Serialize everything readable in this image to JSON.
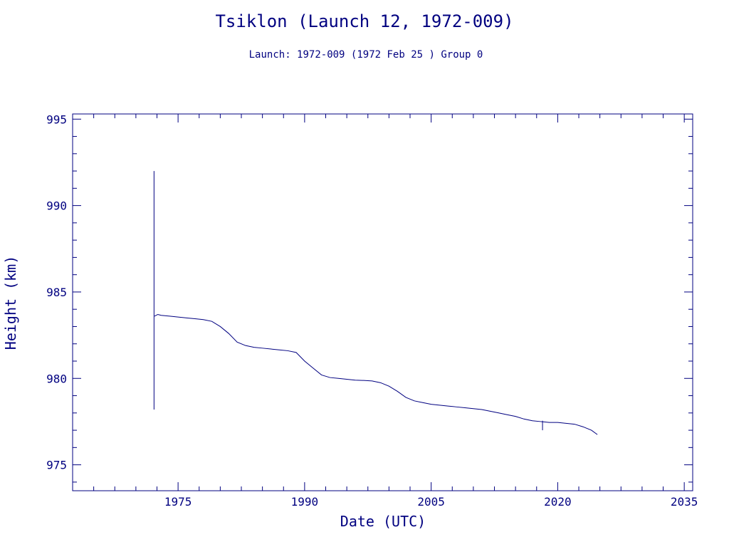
{
  "chart_data": {
    "type": "line",
    "title": "Tsiklon (Launch 12, 1972-009)",
    "subtitle": "Launch: 1972-009  (1972 Feb 25 )  Group 0",
    "xlabel": "Date (UTC)",
    "ylabel": "Height (km)",
    "xlim": [
      1962.5,
      2036
    ],
    "ylim": [
      973.5,
      995.3
    ],
    "xticks": [
      1975,
      1990,
      2005,
      2020,
      2035
    ],
    "yticks": [
      975,
      980,
      985,
      990,
      995
    ],
    "grid": false,
    "color": "#000080",
    "series": [
      {
        "values": [
          [
            1972.2,
            983.6
          ],
          [
            1972.6,
            983.7
          ],
          [
            1973.0,
            983.65
          ],
          [
            1974.0,
            983.6
          ],
          [
            1975.0,
            983.55
          ],
          [
            1976.0,
            983.5
          ],
          [
            1977.0,
            983.45
          ],
          [
            1978.0,
            983.4
          ],
          [
            1979.0,
            983.3
          ],
          [
            1980.0,
            983.0
          ],
          [
            1981.0,
            982.6
          ],
          [
            1982.0,
            982.1
          ],
          [
            1983.0,
            981.9
          ],
          [
            1984.0,
            981.8
          ],
          [
            1985.0,
            981.75
          ],
          [
            1986.0,
            981.7
          ],
          [
            1987.0,
            981.65
          ],
          [
            1988.0,
            981.6
          ],
          [
            1989.0,
            981.5
          ],
          [
            1990.0,
            981.0
          ],
          [
            1991.0,
            980.6
          ],
          [
            1992.0,
            980.2
          ],
          [
            1993.0,
            980.05
          ],
          [
            1994.0,
            980.0
          ],
          [
            1995.0,
            979.95
          ],
          [
            1996.0,
            979.9
          ],
          [
            1997.0,
            979.88
          ],
          [
            1998.0,
            979.85
          ],
          [
            1999.0,
            979.75
          ],
          [
            2000.0,
            979.55
          ],
          [
            2001.0,
            979.25
          ],
          [
            2002.0,
            978.9
          ],
          [
            2003.0,
            978.7
          ],
          [
            2004.0,
            978.6
          ],
          [
            2005.0,
            978.5
          ],
          [
            2006.0,
            978.45
          ],
          [
            2007.0,
            978.4
          ],
          [
            2008.0,
            978.35
          ],
          [
            2009.0,
            978.3
          ],
          [
            2010.0,
            978.25
          ],
          [
            2011.0,
            978.2
          ],
          [
            2012.0,
            978.1
          ],
          [
            2013.0,
            978.0
          ],
          [
            2014.0,
            977.9
          ],
          [
            2015.0,
            977.8
          ],
          [
            2016.0,
            977.65
          ],
          [
            2017.0,
            977.55
          ],
          [
            2018.0,
            977.5
          ],
          [
            2019.0,
            977.45
          ],
          [
            2020.0,
            977.45
          ],
          [
            2021.0,
            977.4
          ],
          [
            2022.0,
            977.35
          ],
          [
            2023.0,
            977.2
          ],
          [
            2024.0,
            977.0
          ],
          [
            2024.7,
            976.75
          ]
        ]
      }
    ],
    "spikes": [
      {
        "x": 1972.15,
        "y_low": 978.2,
        "y_high": 992.0
      },
      {
        "x": 2018.2,
        "y_low": 977.0,
        "y_high": 977.55
      }
    ]
  }
}
